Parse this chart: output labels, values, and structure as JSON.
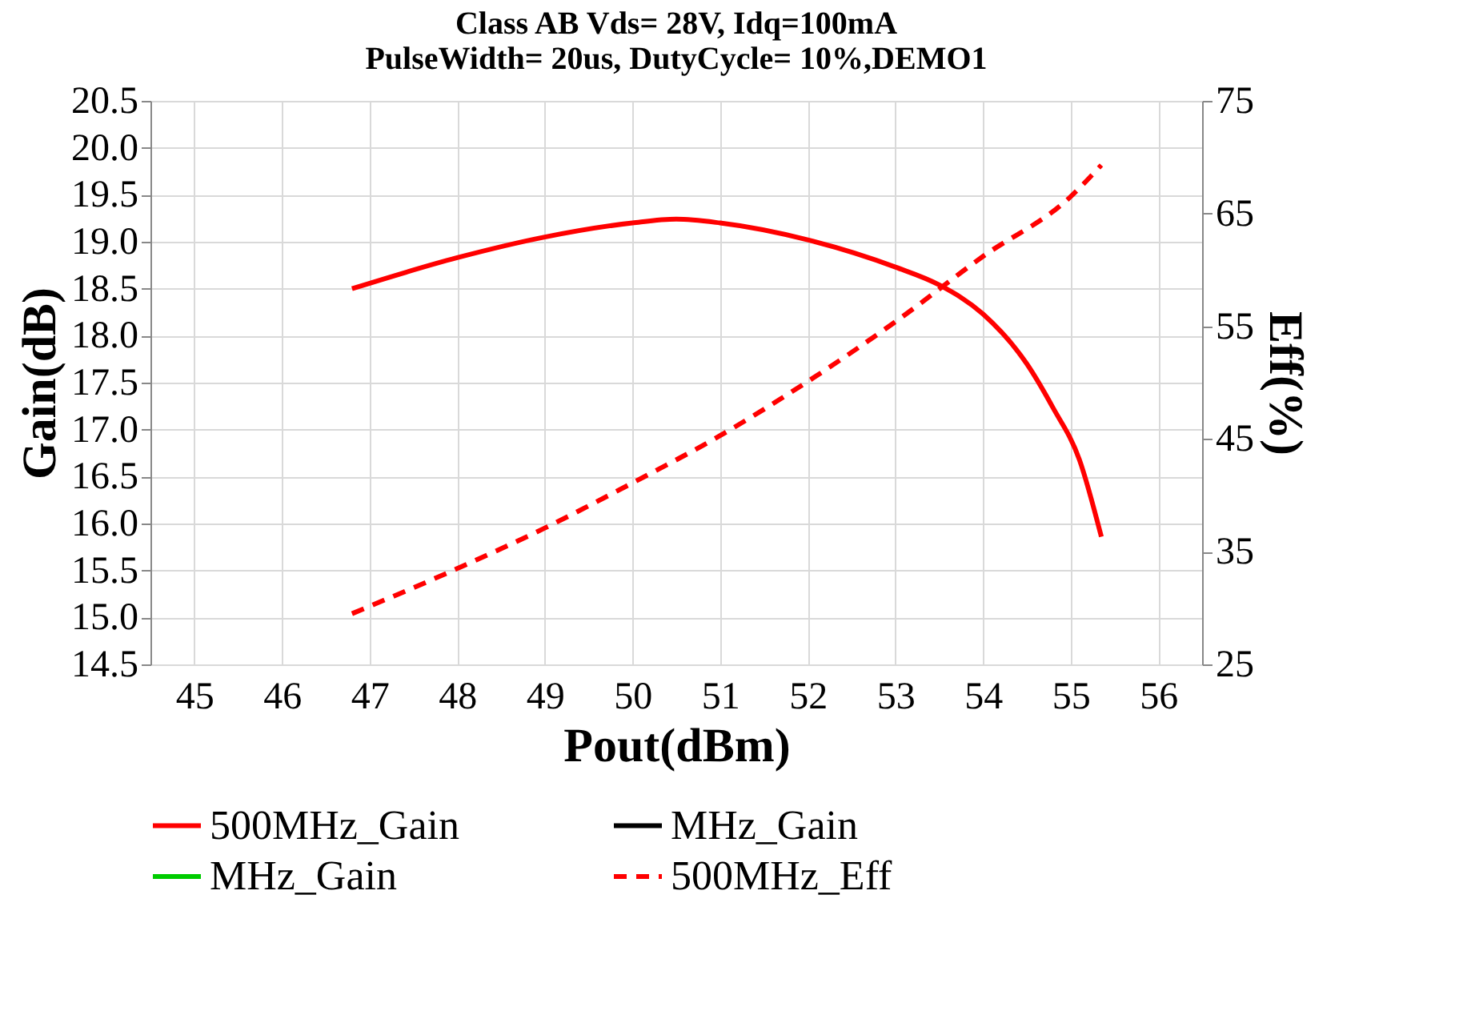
{
  "chart_data": {
    "type": "line",
    "title": "Class AB Vds= 28V, Idq=100mA\nPulseWidth= 20us, DutyCycle= 10%,DEMO1",
    "xlabel": "Pout(dBm)",
    "ylabel": "Gain(dB)",
    "y2label": "Eff(%)",
    "xlim": [
      44.5,
      56.5
    ],
    "xticks": [
      45,
      46,
      47,
      48,
      49,
      50,
      51,
      52,
      53,
      54,
      55,
      56
    ],
    "ylim": [
      14.5,
      20.5
    ],
    "yticks": [
      14.5,
      {
        "value": 15,
        "label": "15.0"
      },
      15.5,
      {
        "value": 16,
        "label": "16.0"
      },
      16.5,
      {
        "value": 17,
        "label": "17.0"
      },
      17.5,
      {
        "value": 18,
        "label": "18.0"
      },
      18.5,
      {
        "value": 19,
        "label": "19.0"
      },
      19.5,
      {
        "value": 20,
        "label": "20.0"
      },
      20.5
    ],
    "y2lim": [
      25,
      75
    ],
    "y2ticks": [
      25,
      35,
      45,
      55,
      65,
      75
    ],
    "grid": true,
    "legend": "bottom",
    "marker": "none",
    "series": [
      {
        "name": "500MHz_Gain",
        "color": "#ff0000",
        "line_style": "solid",
        "x": [
          46.8,
          48,
          49,
          50,
          50.5,
          51,
          52,
          53,
          53.5,
          54,
          54.5,
          54.8,
          55.1,
          55.35
        ],
        "values": [
          18.5,
          18.83,
          19.05,
          19.2,
          19.24,
          19.2,
          19.02,
          18.73,
          18.54,
          18.23,
          17.7,
          17.23,
          16.68,
          15.86
        ]
      },
      {
        "name": "MHz_Gain",
        "color": "#000000",
        "line_style": "solid"
      },
      {
        "name": "MHz_Gain",
        "color": "#00cc00",
        "line_style": "solid"
      },
      {
        "name": "500MHz_Eff",
        "color": "#ff0000",
        "line_style": "dashed",
        "axis": "y2",
        "x": [
          46.8,
          48,
          49,
          50,
          51,
          52,
          53,
          54,
          55,
          55.35
        ],
        "values": [
          29.5,
          33.5,
          37.1,
          41.1,
          45.3,
          50.1,
          55.4,
          61.2,
          66.5,
          69.3
        ]
      }
    ]
  }
}
